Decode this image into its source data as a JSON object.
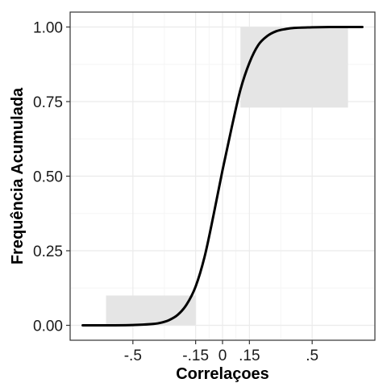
{
  "chart_data": {
    "type": "line",
    "title": "",
    "xlabel": "Correlaçoes",
    "ylabel": "Frequência Acumulada",
    "x_ticks": [
      {
        "value": -0.5,
        "label": "-.5"
      },
      {
        "value": -0.15,
        "label": "-.15"
      },
      {
        "value": 0,
        "label": "0"
      },
      {
        "value": 0.15,
        "label": ".15"
      },
      {
        "value": 0.5,
        "label": ".5"
      }
    ],
    "y_ticks": [
      {
        "value": 0,
        "label": "0.00"
      },
      {
        "value": 0.25,
        "label": "0.25"
      },
      {
        "value": 0.5,
        "label": "0.50"
      },
      {
        "value": 0.75,
        "label": "0.75"
      },
      {
        "value": 1,
        "label": "1.00"
      }
    ],
    "xlim": [
      -0.85,
      0.85
    ],
    "ylim": [
      -0.05,
      1.05
    ],
    "grid": true,
    "legend": "none",
    "shaded_regions": [
      {
        "x": [
          -0.65,
          -0.15
        ],
        "y": [
          0,
          0.1
        ]
      },
      {
        "x": [
          0.1,
          0.7
        ],
        "y": [
          0.73,
          1
        ]
      }
    ],
    "series": [
      {
        "x": [
          -0.78,
          -0.7,
          -0.6,
          -0.5,
          -0.4,
          -0.35,
          -0.3,
          -0.25,
          -0.2,
          -0.15,
          -0.1,
          -0.05,
          0,
          0.05,
          0.1,
          0.15,
          0.2,
          0.25,
          0.3,
          0.35,
          0.4,
          0.5,
          0.6,
          0.7,
          0.78
        ],
        "y": [
          0.0,
          0.0,
          0.0,
          0.001,
          0.004,
          0.008,
          0.017,
          0.035,
          0.07,
          0.13,
          0.23,
          0.37,
          0.52,
          0.66,
          0.79,
          0.88,
          0.94,
          0.97,
          0.986,
          0.993,
          0.997,
          0.999,
          1.0,
          1.0,
          1.0
        ]
      }
    ],
    "colors": {
      "panel_border": "#333333",
      "grid_major": "#ebebeb",
      "grid_minor": "#f5f5f5",
      "shade": "#e5e5e5",
      "line": "#000000"
    }
  }
}
